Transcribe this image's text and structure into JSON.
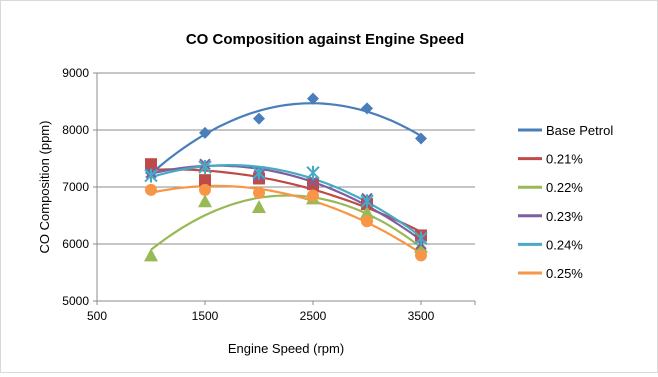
{
  "chart_data": {
    "type": "scatter",
    "title": "CO Composition against Engine Speed",
    "xlabel": "Engine Speed (rpm)",
    "ylabel": "CO Composition (ppm)",
    "xlim": [
      500,
      4000
    ],
    "ylim": [
      5000,
      9000
    ],
    "xticks": [
      500,
      1500,
      2500,
      3500
    ],
    "yticks": [
      5000,
      6000,
      7000,
      8000,
      9000
    ],
    "grid": "horizontal",
    "legend": "right",
    "x": [
      1000,
      1500,
      2000,
      2500,
      3000,
      3500
    ],
    "series": [
      {
        "name": "Base Petrol",
        "color": "#4a7ebb",
        "marker": "diamond",
        "values": [
          7250,
          7950,
          8200,
          8550,
          8380,
          7850
        ]
      },
      {
        "name": "0.21%",
        "color": "#be4b48",
        "marker": "square",
        "values": [
          7400,
          7120,
          7150,
          7050,
          6700,
          6150
        ]
      },
      {
        "name": "0.22%",
        "color": "#98b954",
        "marker": "triangle",
        "values": [
          5800,
          6750,
          6650,
          6800,
          6550,
          5950
        ]
      },
      {
        "name": "0.23%",
        "color": "#7d5fa0",
        "marker": "x",
        "values": [
          7250,
          7400,
          7200,
          7100,
          6800,
          6000
        ]
      },
      {
        "name": "0.24%",
        "color": "#46aac5",
        "marker": "star",
        "values": [
          7200,
          7350,
          7250,
          7250,
          6750,
          6100
        ]
      },
      {
        "name": "0.25%",
        "color": "#f79646",
        "marker": "circle",
        "values": [
          6950,
          6950,
          6900,
          6850,
          6400,
          5800
        ]
      }
    ]
  }
}
